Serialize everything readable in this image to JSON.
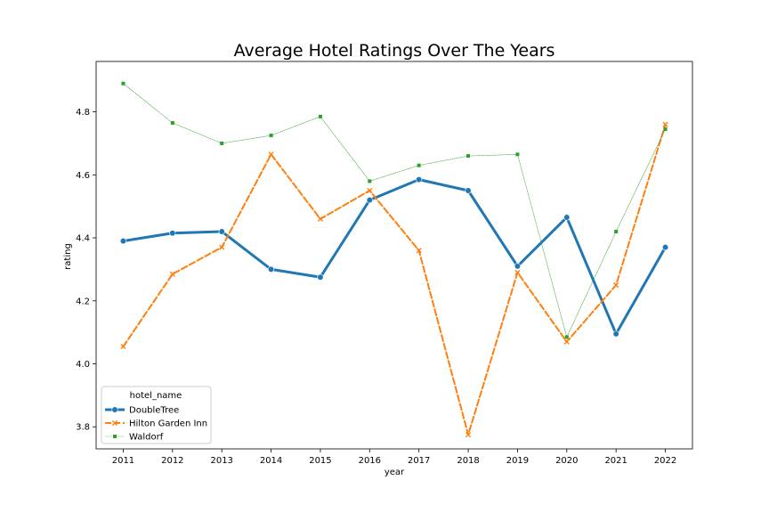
{
  "chart_data": {
    "type": "line",
    "title": "Average Hotel Ratings Over The Years",
    "xlabel": "year",
    "ylabel": "rating",
    "x": [
      2011,
      2012,
      2013,
      2014,
      2015,
      2016,
      2017,
      2018,
      2019,
      2020,
      2021,
      2022
    ],
    "ylim": [
      3.73,
      4.96
    ],
    "yticks": [
      3.8,
      4.0,
      4.2,
      4.4,
      4.6,
      4.8
    ],
    "ytick_labels": [
      "3.8",
      "4.0",
      "4.2",
      "4.4",
      "4.6",
      "4.8"
    ],
    "grid": false,
    "legend": {
      "title": "hotel_name",
      "position": "lower-left"
    },
    "series": [
      {
        "name": "DoubleTree",
        "color": "#1f77b4",
        "marker": "circle",
        "line_style": "solid",
        "values": [
          4.39,
          4.415,
          4.42,
          4.3,
          4.275,
          4.52,
          4.585,
          4.55,
          4.31,
          4.465,
          4.095,
          4.37
        ]
      },
      {
        "name": "Hilton Garden Inn",
        "color": "#ff7f0e",
        "marker": "x",
        "line_style": "dashed",
        "values": [
          4.055,
          4.285,
          4.37,
          4.665,
          4.46,
          4.55,
          4.36,
          3.775,
          4.29,
          4.07,
          4.25,
          4.76
        ]
      },
      {
        "name": "Waldorf",
        "color": "#2ca02c",
        "marker": "square",
        "line_style": "dotted",
        "values": [
          4.89,
          4.765,
          4.7,
          4.725,
          4.785,
          4.58,
          4.63,
          4.66,
          4.665,
          4.085,
          4.42,
          4.745
        ]
      }
    ]
  }
}
